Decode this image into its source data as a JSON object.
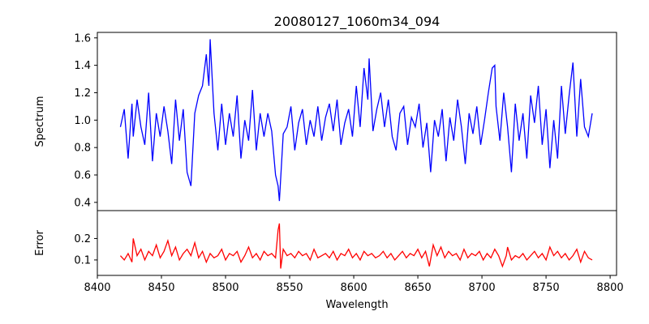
{
  "chart_data": [
    {
      "type": "line",
      "title": "20080127_1060m34_094",
      "xlabel": "",
      "ylabel": "Spectrum",
      "xlim": [
        8400,
        8805
      ],
      "ylim": [
        0.34,
        1.64
      ],
      "x_ticks": [
        8400,
        8450,
        8500,
        8550,
        8600,
        8650,
        8700,
        8750,
        8800
      ],
      "y_ticks": [
        "0.4",
        "0.6",
        "0.8",
        "1.0",
        "1.2",
        "1.4",
        "1.6"
      ],
      "grid": false,
      "color": "#0000ff",
      "series": [
        {
          "x": [
            8418,
            8421,
            8424,
            8427,
            8428,
            8431,
            8434,
            8437,
            8440,
            8443,
            8446,
            8449,
            8452,
            8455,
            8458,
            8461,
            8464,
            8467,
            8470,
            8473,
            8476,
            8479,
            8482,
            8485,
            8486,
            8487,
            8488,
            8491,
            8494,
            8497,
            8500,
            8503,
            8506,
            8509,
            8512,
            8515,
            8518,
            8521,
            8524,
            8527,
            8530,
            8533,
            8536,
            8539,
            8541,
            8542,
            8545,
            8548,
            8551,
            8554,
            8557,
            8560,
            8563,
            8566,
            8569,
            8572,
            8575,
            8578,
            8581,
            8584,
            8587,
            8590,
            8593,
            8596,
            8599,
            8602,
            8605,
            8608,
            8611,
            8612,
            8615,
            8618,
            8621,
            8624,
            8627,
            8630,
            8633,
            8636,
            8639,
            8642,
            8645,
            8648,
            8651,
            8654,
            8657,
            8660,
            8663,
            8666,
            8669,
            8672,
            8675,
            8678,
            8681,
            8684,
            8687,
            8690,
            8693,
            8696,
            8699,
            8702,
            8705,
            8708,
            8710,
            8711,
            8714,
            8717,
            8720,
            8723,
            8726,
            8729,
            8732,
            8735,
            8738,
            8741,
            8744,
            8747,
            8750,
            8753,
            8756,
            8759,
            8762,
            8765,
            8768,
            8771,
            8774,
            8777,
            8780,
            8783,
            8786
          ],
          "y": [
            0.95,
            1.08,
            0.72,
            1.12,
            0.88,
            1.15,
            0.95,
            0.82,
            1.2,
            0.7,
            1.05,
            0.88,
            1.1,
            0.92,
            0.68,
            1.15,
            0.85,
            1.08,
            0.62,
            0.52,
            1.05,
            1.18,
            1.25,
            1.48,
            1.35,
            1.25,
            1.59,
            1.05,
            0.78,
            1.12,
            0.82,
            1.05,
            0.88,
            1.18,
            0.72,
            1.0,
            0.85,
            1.22,
            0.78,
            1.05,
            0.88,
            1.05,
            0.92,
            0.6,
            0.52,
            0.41,
            0.9,
            0.95,
            1.1,
            0.78,
            0.98,
            1.08,
            0.82,
            1.0,
            0.88,
            1.1,
            0.85,
            1.02,
            1.12,
            0.92,
            1.15,
            0.82,
            0.98,
            1.08,
            0.88,
            1.25,
            0.95,
            1.38,
            1.15,
            1.45,
            0.92,
            1.08,
            1.2,
            0.95,
            1.15,
            0.88,
            0.78,
            1.05,
            1.1,
            0.82,
            1.02,
            0.95,
            1.12,
            0.8,
            0.98,
            0.62,
            1.0,
            0.88,
            1.08,
            0.7,
            1.02,
            0.85,
            1.15,
            0.95,
            0.68,
            1.05,
            0.9,
            1.1,
            0.82,
            1.0,
            1.2,
            1.38,
            1.4,
            1.1,
            0.85,
            1.2,
            0.95,
            0.62,
            1.12,
            0.85,
            1.05,
            0.72,
            1.18,
            0.98,
            1.25,
            0.82,
            1.08,
            0.65,
            1.0,
            0.72,
            1.25,
            0.9,
            1.18,
            1.42,
            0.88,
            1.3,
            0.95,
            0.88,
            1.05
          ]
        }
      ]
    },
    {
      "type": "line",
      "title": "",
      "xlabel": "Wavelength",
      "ylabel": "Error",
      "xlim": [
        8400,
        8805
      ],
      "ylim": [
        0.028,
        0.33
      ],
      "x_ticks": [
        8400,
        8450,
        8500,
        8550,
        8600,
        8650,
        8700,
        8750,
        8800
      ],
      "y_ticks": [
        "0.1",
        "0.2"
      ],
      "grid": false,
      "color": "#ff0000",
      "series": [
        {
          "x": [
            8418,
            8421,
            8424,
            8427,
            8428,
            8431,
            8434,
            8437,
            8440,
            8443,
            8446,
            8449,
            8452,
            8455,
            8458,
            8461,
            8464,
            8467,
            8470,
            8473,
            8476,
            8479,
            8482,
            8485,
            8488,
            8491,
            8494,
            8497,
            8500,
            8503,
            8506,
            8509,
            8512,
            8515,
            8518,
            8521,
            8524,
            8527,
            8530,
            8533,
            8536,
            8539,
            8541,
            8542,
            8543,
            8545,
            8548,
            8551,
            8554,
            8557,
            8560,
            8563,
            8566,
            8569,
            8572,
            8575,
            8578,
            8581,
            8584,
            8587,
            8590,
            8593,
            8596,
            8599,
            8602,
            8605,
            8608,
            8611,
            8614,
            8617,
            8620,
            8623,
            8626,
            8629,
            8632,
            8635,
            8638,
            8641,
            8644,
            8647,
            8650,
            8653,
            8656,
            8659,
            8662,
            8665,
            8668,
            8671,
            8674,
            8677,
            8680,
            8683,
            8686,
            8689,
            8692,
            8695,
            8698,
            8701,
            8704,
            8707,
            8710,
            8713,
            8716,
            8719,
            8720,
            8723,
            8726,
            8729,
            8732,
            8735,
            8738,
            8741,
            8744,
            8747,
            8750,
            8753,
            8756,
            8759,
            8762,
            8765,
            8768,
            8771,
            8774,
            8777,
            8780,
            8783,
            8786
          ],
          "y": [
            0.12,
            0.1,
            0.13,
            0.09,
            0.2,
            0.12,
            0.15,
            0.1,
            0.14,
            0.12,
            0.17,
            0.11,
            0.14,
            0.19,
            0.12,
            0.16,
            0.1,
            0.13,
            0.15,
            0.12,
            0.18,
            0.11,
            0.14,
            0.09,
            0.13,
            0.11,
            0.12,
            0.15,
            0.1,
            0.13,
            0.12,
            0.14,
            0.09,
            0.12,
            0.16,
            0.11,
            0.13,
            0.1,
            0.14,
            0.12,
            0.13,
            0.11,
            0.24,
            0.27,
            0.06,
            0.15,
            0.12,
            0.13,
            0.11,
            0.14,
            0.12,
            0.13,
            0.1,
            0.15,
            0.11,
            0.12,
            0.13,
            0.11,
            0.14,
            0.1,
            0.13,
            0.12,
            0.15,
            0.11,
            0.13,
            0.1,
            0.14,
            0.12,
            0.13,
            0.11,
            0.12,
            0.14,
            0.11,
            0.13,
            0.1,
            0.12,
            0.14,
            0.11,
            0.13,
            0.12,
            0.15,
            0.11,
            0.14,
            0.07,
            0.17,
            0.12,
            0.16,
            0.11,
            0.14,
            0.12,
            0.13,
            0.1,
            0.15,
            0.11,
            0.13,
            0.12,
            0.14,
            0.1,
            0.13,
            0.11,
            0.15,
            0.12,
            0.07,
            0.12,
            0.16,
            0.1,
            0.12,
            0.11,
            0.13,
            0.1,
            0.12,
            0.14,
            0.11,
            0.13,
            0.1,
            0.16,
            0.12,
            0.14,
            0.11,
            0.13,
            0.1,
            0.12,
            0.15,
            0.09,
            0.14,
            0.11,
            0.1
          ]
        }
      ]
    }
  ]
}
